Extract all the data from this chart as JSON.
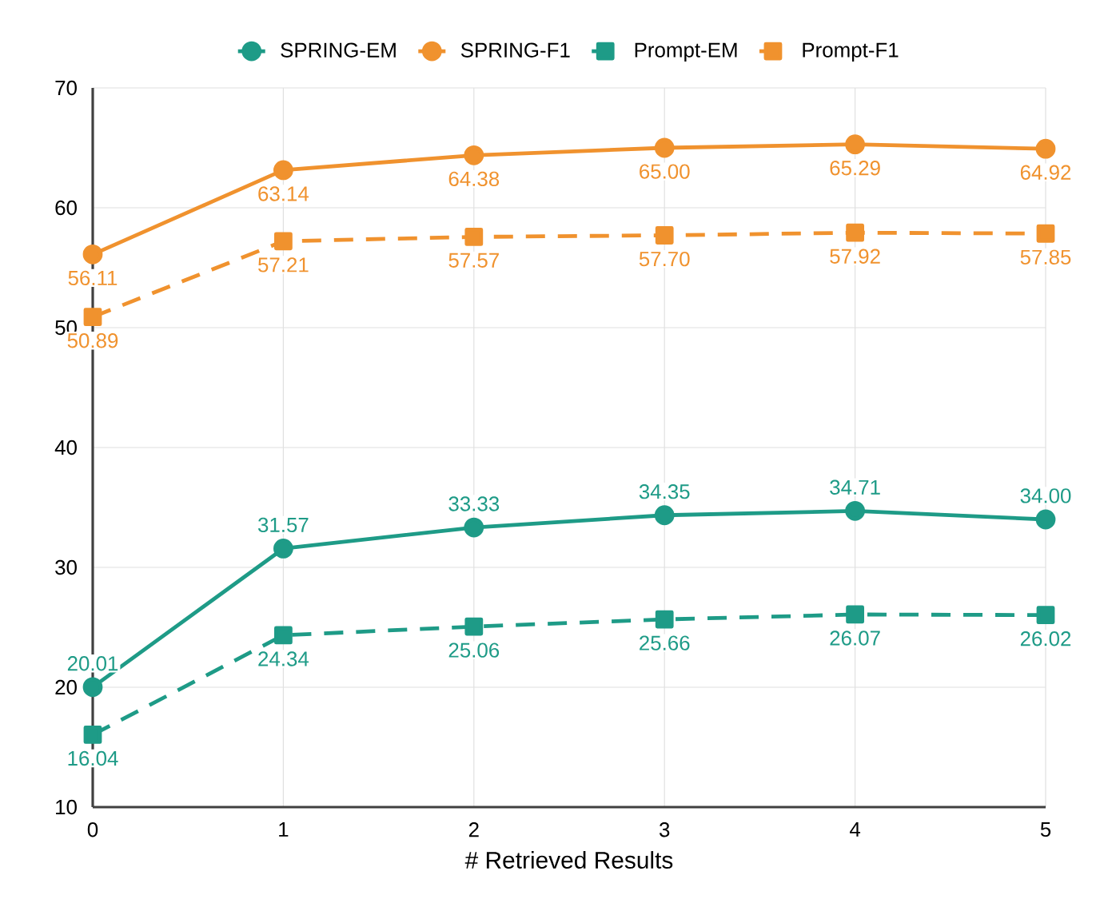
{
  "chart_data": {
    "type": "line",
    "xlabel": "# Retrieved Results",
    "x": [
      0,
      1,
      2,
      3,
      4,
      5
    ],
    "xlim": [
      0,
      5
    ],
    "xticks": [
      0,
      1,
      2,
      3,
      4,
      5
    ],
    "ylim": [
      10,
      70
    ],
    "yticks": [
      10,
      20,
      30,
      40,
      50,
      60,
      70
    ],
    "grid": true,
    "legend": "top",
    "series": [
      {
        "name": "SPRING-EM",
        "color": "#1e9b87",
        "marker": "circle",
        "line_style": "solid",
        "values": [
          20.01,
          31.57,
          33.33,
          34.35,
          34.71,
          34.0
        ],
        "value_labels": [
          "20.01",
          "31.57",
          "33.33",
          "34.35",
          "34.71",
          "34.00"
        ]
      },
      {
        "name": "SPRING-F1",
        "color": "#f0922e",
        "marker": "circle",
        "line_style": "solid",
        "values": [
          56.11,
          63.14,
          64.38,
          65.0,
          65.29,
          64.92
        ],
        "value_labels": [
          "56.11",
          "63.14",
          "64.38",
          "65.00",
          "65.29",
          "64.92"
        ]
      },
      {
        "name": "Prompt-EM",
        "color": "#1e9b87",
        "marker": "square",
        "line_style": "dashed",
        "values": [
          16.04,
          24.34,
          25.06,
          25.66,
          26.07,
          26.02
        ],
        "value_labels": [
          "16.04",
          "24.34",
          "25.06",
          "25.66",
          "26.07",
          "26.02"
        ]
      },
      {
        "name": "Prompt-F1",
        "color": "#f0922e",
        "marker": "square",
        "line_style": "dashed",
        "values": [
          50.89,
          57.21,
          57.57,
          57.7,
          57.92,
          57.85
        ],
        "value_labels": [
          "50.89",
          "57.21",
          "57.57",
          "57.70",
          "57.92",
          "57.85"
        ]
      }
    ]
  }
}
